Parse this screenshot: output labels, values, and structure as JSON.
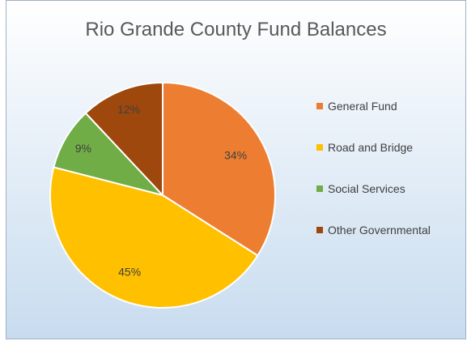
{
  "chart_data": {
    "type": "pie",
    "title": "Rio Grande County Fund Balances",
    "categories": [
      "General Fund",
      "Road and Bridge",
      "Social Services",
      "Other Governmental"
    ],
    "values": [
      34,
      45,
      9,
      12
    ],
    "data_labels": [
      "34%",
      "45%",
      "9%",
      "12%"
    ],
    "colors": [
      "#ED7D31",
      "#FFC000",
      "#70AD47",
      "#9E480E"
    ],
    "legend_position": "right",
    "start_angle": "12 o'clock, clockwise"
  }
}
